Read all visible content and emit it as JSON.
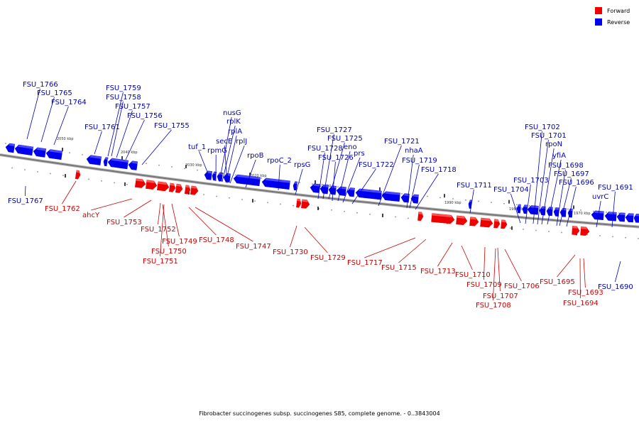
{
  "legend": [
    {
      "label": "Forward",
      "color": "#f00000"
    },
    {
      "label": "Reverse",
      "color": "#0000f0"
    }
  ],
  "caption": "Fibrobacter succinogenes subsp. succinogenes S85, complete genome. - 0..3843004",
  "colors": {
    "forward": "#ee0000",
    "reverse": "#0000ee",
    "forward_label": "#cc0000",
    "reverse_label": "#0000bb",
    "axis": "#777777"
  },
  "ticks": [
    {
      "kbp": 2050,
      "label": "2050 kbp"
    },
    {
      "kbp": 2040,
      "label": "2040 kbp"
    },
    {
      "kbp": 2030,
      "label": "2030 kbp"
    },
    {
      "kbp": 2020,
      "label": "2020 kbp"
    },
    {
      "kbp": 2010,
      "label": "2010 kbp"
    },
    {
      "kbp": 2000,
      "label": "2000 kbp"
    },
    {
      "kbp": 1990,
      "label": "1990 kbp"
    },
    {
      "kbp": 1980,
      "label": "1980 kbp"
    },
    {
      "kbp": 1970,
      "label": "1970 kbp"
    }
  ],
  "reverse_labels": [
    "FSU_1766",
    "FSU_1765",
    "FSU_1764",
    "FSU_1767",
    "FSU_1761",
    "FSU_1759",
    "FSU_1758",
    "FSU_1757",
    "FSU_1756",
    "FSU_1755",
    "tuf_1",
    "rpmG",
    "nusG",
    "rplK",
    "rplA",
    "secE",
    "rplJ",
    "rpoB",
    "rpoC_2",
    "rpsG",
    "FSU_1727",
    "FSU_1725",
    "FSU_1728",
    "eno",
    "FSU_1726",
    "prs",
    "FSU_1722",
    "FSU_1721",
    "nhaA",
    "FSU_1719",
    "FSU_1718",
    "FSU_1711",
    "FSU_1703",
    "FSU_1704",
    "FSU_1702",
    "FSU_1701",
    "rpoN",
    "yfiA",
    "FSU_1698",
    "FSU_1697",
    "FSU_1696",
    "FSU_1691",
    "uvrC",
    "FSU_1690"
  ],
  "forward_labels": [
    "FSU_1762",
    "ahcY",
    "FSU_1753",
    "FSU_1752",
    "FSU_1749",
    "FSU_1750",
    "FSU_1751",
    "FSU_1748",
    "FSU_1747",
    "FSU_1730",
    "FSU_1729",
    "FSU_1717",
    "FSU_1715",
    "FSU_1713",
    "FSU_1710",
    "FSU_1709",
    "FSU_1707",
    "FSU_1708",
    "FSU_1706",
    "FSU_1695",
    "FSU_1693",
    "FSU_1694"
  ]
}
